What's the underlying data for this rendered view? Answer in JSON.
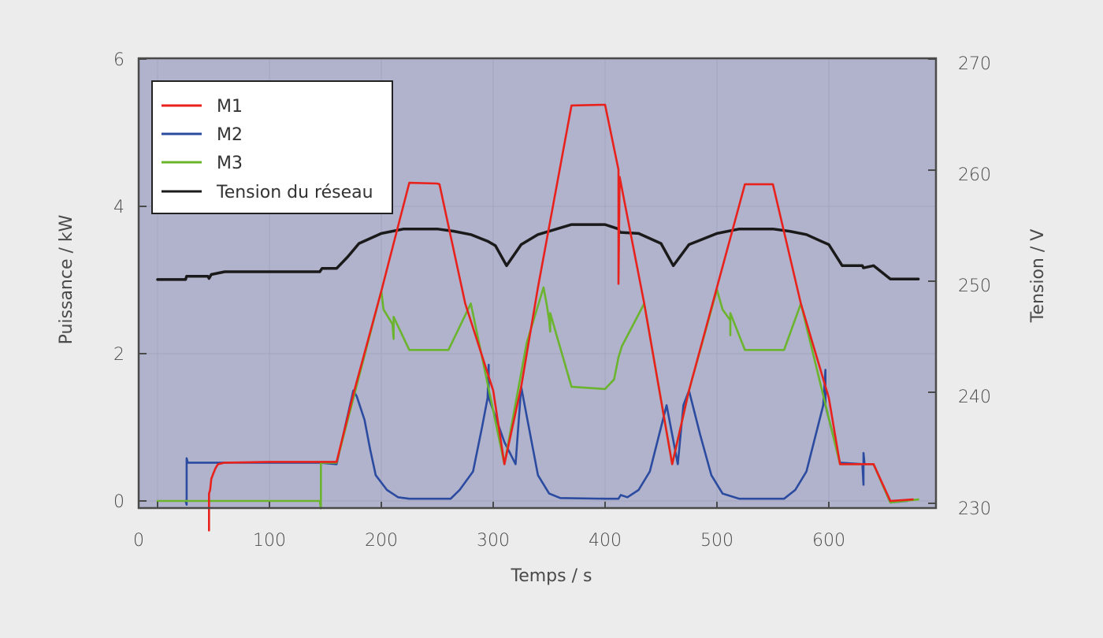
{
  "chart_data": {
    "type": "line",
    "title": "",
    "xlabel": "Temps / s",
    "ylabel": "Puissance / kW",
    "y2label": "Tension / V",
    "xlim": [
      -17,
      694
    ],
    "ylim": [
      -0.1,
      6
    ],
    "y2lim": [
      229.4,
      270
    ],
    "x_ticks": [
      0,
      100,
      200,
      300,
      400,
      500,
      600
    ],
    "y_ticks": [
      0,
      2,
      4,
      6
    ],
    "y2_ticks": [
      230,
      240,
      250,
      260,
      270
    ],
    "grid": true,
    "legend_position": "upper left",
    "colors": {
      "page_background": "#ececec",
      "plot_background": "#b1b2cb",
      "grid": "#a3a4bd",
      "axis": "#4a4a4a"
    },
    "series": [
      {
        "name": "M1",
        "axis": "left",
        "color": "#e8211c",
        "points": [
          [
            46,
            -0.4
          ],
          [
            46,
            0.1
          ],
          [
            47,
            0.15
          ],
          [
            48,
            0.3
          ],
          [
            50,
            0.38
          ],
          [
            52,
            0.45
          ],
          [
            54,
            0.5
          ],
          [
            60,
            0.52
          ],
          [
            100,
            0.53
          ],
          [
            145,
            0.53
          ],
          [
            160,
            0.53
          ],
          [
            175,
            1.45
          ],
          [
            200,
            2.85
          ],
          [
            225,
            4.32
          ],
          [
            250,
            4.31
          ],
          [
            252,
            4.3
          ],
          [
            275,
            2.68
          ],
          [
            300,
            1.5
          ],
          [
            310,
            0.5
          ],
          [
            325,
            1.55
          ],
          [
            340,
            2.9
          ],
          [
            370,
            5.37
          ],
          [
            400,
            5.38
          ],
          [
            412,
            4.5
          ],
          [
            412,
            2.95
          ],
          [
            413,
            4.4
          ],
          [
            435,
            2.68
          ],
          [
            460,
            0.5
          ],
          [
            475,
            1.5
          ],
          [
            500,
            2.9
          ],
          [
            525,
            4.3
          ],
          [
            550,
            4.3
          ],
          [
            575,
            2.68
          ],
          [
            600,
            1.4
          ],
          [
            610,
            0.5
          ],
          [
            640,
            0.5
          ],
          [
            655,
            0.0
          ],
          [
            675,
            0.02
          ]
        ]
      },
      {
        "name": "M2",
        "axis": "left",
        "color": "#2a4ba0",
        "points": [
          [
            25,
            0.0
          ],
          [
            26,
            -0.05
          ],
          [
            26,
            0.58
          ],
          [
            27,
            0.52
          ],
          [
            60,
            0.52
          ],
          [
            100,
            0.52
          ],
          [
            145,
            0.52
          ],
          [
            160,
            0.5
          ],
          [
            175,
            1.5
          ],
          [
            178,
            1.42
          ],
          [
            185,
            1.1
          ],
          [
            190,
            0.7
          ],
          [
            195,
            0.35
          ],
          [
            205,
            0.15
          ],
          [
            215,
            0.05
          ],
          [
            225,
            0.03
          ],
          [
            262,
            0.03
          ],
          [
            270,
            0.15
          ],
          [
            282,
            0.4
          ],
          [
            290,
            1.0
          ],
          [
            295,
            1.4
          ],
          [
            296,
            1.85
          ],
          [
            296,
            1.4
          ],
          [
            310,
            0.8
          ],
          [
            320,
            0.5
          ],
          [
            325,
            1.55
          ],
          [
            335,
            0.75
          ],
          [
            340,
            0.35
          ],
          [
            350,
            0.1
          ],
          [
            360,
            0.04
          ],
          [
            400,
            0.03
          ],
          [
            412,
            0.03
          ],
          [
            414,
            0.08
          ],
          [
            420,
            0.05
          ],
          [
            430,
            0.15
          ],
          [
            440,
            0.4
          ],
          [
            450,
            1.0
          ],
          [
            455,
            1.3
          ],
          [
            465,
            0.5
          ],
          [
            470,
            1.3
          ],
          [
            475,
            1.5
          ],
          [
            485,
            0.9
          ],
          [
            495,
            0.35
          ],
          [
            505,
            0.1
          ],
          [
            520,
            0.03
          ],
          [
            560,
            0.03
          ],
          [
            570,
            0.15
          ],
          [
            580,
            0.4
          ],
          [
            590,
            1.0
          ],
          [
            595,
            1.3
          ],
          [
            597,
            1.78
          ],
          [
            597,
            1.3
          ],
          [
            610,
            0.52
          ],
          [
            630,
            0.5
          ],
          [
            631,
            0.22
          ],
          [
            631,
            0.65
          ],
          [
            632,
            0.5
          ],
          [
            640,
            0.5
          ],
          [
            655,
            -0.02
          ],
          [
            670,
            0.0
          ]
        ]
      },
      {
        "name": "M3",
        "axis": "left",
        "color": "#6ab42e",
        "points": [
          [
            0,
            0.0
          ],
          [
            50,
            0.0
          ],
          [
            100,
            0.0
          ],
          [
            145,
            0.0
          ],
          [
            146,
            -0.1
          ],
          [
            146,
            0.52
          ],
          [
            160,
            0.52
          ],
          [
            200,
            2.85
          ],
          [
            202,
            2.6
          ],
          [
            210,
            2.4
          ],
          [
            211,
            2.2
          ],
          [
            211,
            2.5
          ],
          [
            225,
            2.05
          ],
          [
            260,
            2.05
          ],
          [
            280,
            2.68
          ],
          [
            310,
            0.5
          ],
          [
            330,
            2.15
          ],
          [
            345,
            2.9
          ],
          [
            348,
            2.65
          ],
          [
            350,
            2.45
          ],
          [
            351,
            2.3
          ],
          [
            351,
            2.55
          ],
          [
            370,
            1.55
          ],
          [
            400,
            1.52
          ],
          [
            408,
            1.65
          ],
          [
            412,
            1.95
          ],
          [
            415,
            2.1
          ],
          [
            435,
            2.68
          ],
          [
            460,
            0.5
          ],
          [
            475,
            1.5
          ],
          [
            500,
            2.87
          ],
          [
            505,
            2.6
          ],
          [
            512,
            2.45
          ],
          [
            512,
            2.25
          ],
          [
            512,
            2.55
          ],
          [
            525,
            2.05
          ],
          [
            560,
            2.05
          ],
          [
            575,
            2.68
          ],
          [
            610,
            0.5
          ],
          [
            640,
            0.5
          ],
          [
            655,
            -0.02
          ],
          [
            680,
            0.02
          ]
        ]
      },
      {
        "name": "Tension du réseau",
        "axis": "right",
        "color": "#1a1a1a",
        "points": [
          [
            0,
            250.15
          ],
          [
            25,
            250.15
          ],
          [
            26,
            250.45
          ],
          [
            45,
            250.45
          ],
          [
            46,
            250.25
          ],
          [
            48,
            250.6
          ],
          [
            60,
            250.85
          ],
          [
            100,
            250.85
          ],
          [
            140,
            250.85
          ],
          [
            145,
            250.85
          ],
          [
            147,
            251.15
          ],
          [
            160,
            251.15
          ],
          [
            170,
            252.2
          ],
          [
            180,
            253.4
          ],
          [
            200,
            254.3
          ],
          [
            220,
            254.7
          ],
          [
            250,
            254.7
          ],
          [
            265,
            254.5
          ],
          [
            280,
            254.2
          ],
          [
            295,
            253.6
          ],
          [
            302,
            253.2
          ],
          [
            312,
            251.4
          ],
          [
            325,
            253.3
          ],
          [
            340,
            254.2
          ],
          [
            370,
            255.1
          ],
          [
            400,
            255.1
          ],
          [
            412,
            254.7
          ],
          [
            413,
            254.4
          ],
          [
            430,
            254.3
          ],
          [
            450,
            253.4
          ],
          [
            461,
            251.4
          ],
          [
            475,
            253.3
          ],
          [
            500,
            254.3
          ],
          [
            520,
            254.7
          ],
          [
            550,
            254.7
          ],
          [
            565,
            254.5
          ],
          [
            580,
            254.2
          ],
          [
            593,
            253.6
          ],
          [
            600,
            253.3
          ],
          [
            612,
            251.4
          ],
          [
            630,
            251.4
          ],
          [
            631,
            251.2
          ],
          [
            640,
            251.4
          ],
          [
            655,
            250.2
          ],
          [
            680,
            250.2
          ]
        ]
      }
    ]
  },
  "labels": {
    "ylabel": "Puissance / kW",
    "y2label": "Tension / V",
    "xlabel": "Temps / s",
    "x_tick_labels": [
      "0",
      "100",
      "200",
      "300",
      "400",
      "500",
      "600"
    ],
    "y_tick_labels": [
      "0",
      "2",
      "4",
      "6"
    ],
    "y2_tick_labels": [
      "230",
      "240",
      "250",
      "260",
      "270"
    ]
  },
  "legend": {
    "items": [
      {
        "label": "M1",
        "color": "#e8211c"
      },
      {
        "label": "M2",
        "color": "#2a4ba0"
      },
      {
        "label": "M3",
        "color": "#6ab42e"
      },
      {
        "label": "Tension du réseau",
        "color": "#1a1a1a"
      }
    ]
  }
}
